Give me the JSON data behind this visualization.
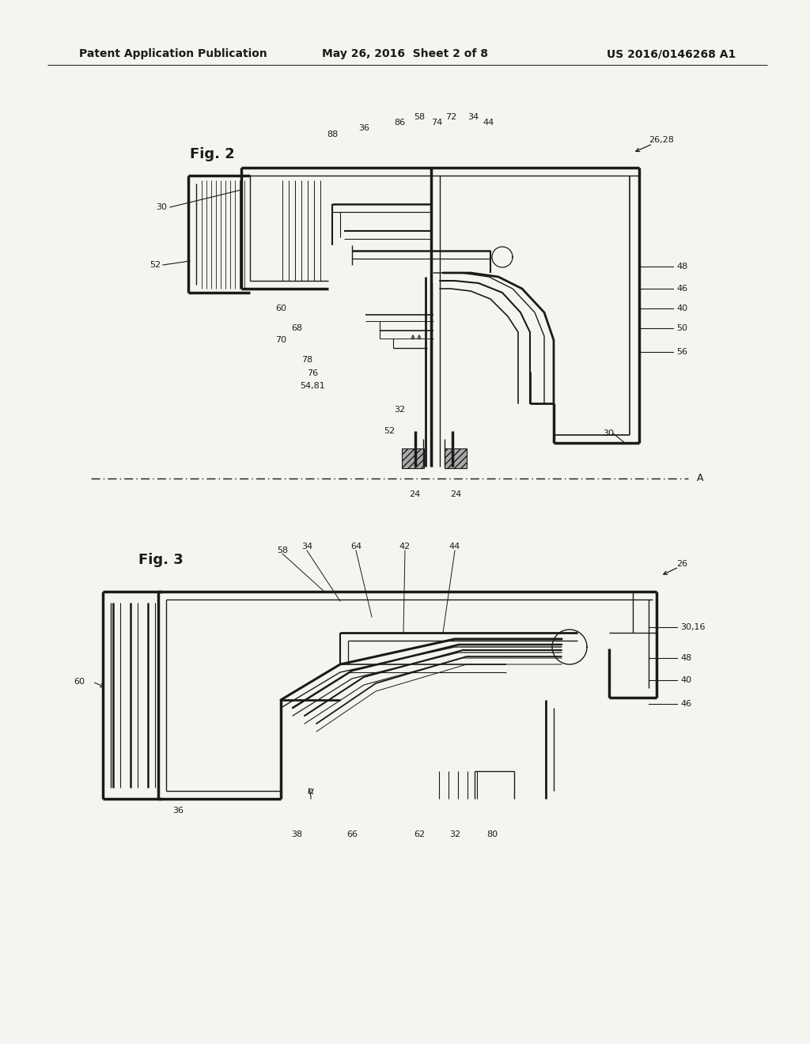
{
  "bg_color": "#f5f5f0",
  "line_color": "#1a1a1a",
  "page_bg": "#f5f5f0",
  "header": {
    "left": "Patent Application Publication",
    "center": "May 26, 2016  Sheet 2 of 8",
    "right": "US 2016/0146268 A1",
    "fontsize": 10.5
  }
}
